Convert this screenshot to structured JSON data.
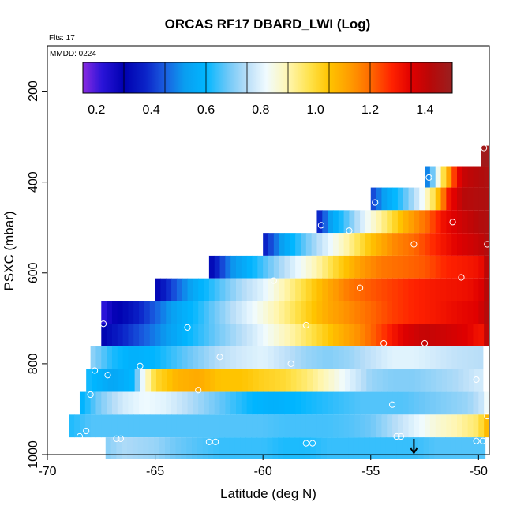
{
  "chart_data": {
    "type": "heatmap",
    "title": "ORCAS RF17 DBARD_LWI (Log)",
    "flights_note": "Flts: 17",
    "date_note": "MMDD: 0224",
    "xlabel": "Latitude (deg N)",
    "ylabel": "PSXC (mbar)",
    "xlim": [
      -70,
      -49.5
    ],
    "ylim": [
      1000,
      100
    ],
    "x_ticks": [
      -70,
      -65,
      -60,
      -55,
      -50
    ],
    "y_ticks": [
      200,
      400,
      600,
      800,
      1000
    ],
    "colorbar": {
      "range": [
        0.15,
        1.5
      ],
      "ticks": [
        0.2,
        0.4,
        0.6,
        0.8,
        1.0,
        1.2,
        1.4
      ],
      "tick_labels": [
        "0.2",
        "0.4",
        "0.6",
        "0.8",
        "1.0",
        "1.2",
        "1.4"
      ],
      "dividers": [
        0.3,
        0.45,
        0.6,
        0.75,
        0.9,
        1.05,
        1.2,
        1.35
      ]
    },
    "bands": [
      {
        "p_top": 320,
        "p_bot": 365,
        "lat_start": -49.9,
        "lat_end": -49.55,
        "stops": [
          [
            -49.9,
            1.48
          ],
          [
            -49.55,
            1.48
          ]
        ]
      },
      {
        "p_top": 365,
        "p_bot": 412,
        "lat_start": -52.5,
        "lat_end": -49.55,
        "stops": [
          [
            -52.5,
            0.4
          ],
          [
            -52.1,
            0.7
          ],
          [
            -51.7,
            0.95
          ],
          [
            -51.4,
            1.1
          ],
          [
            -51.0,
            1.32
          ],
          [
            -50.6,
            1.4
          ],
          [
            -49.55,
            1.45
          ]
        ]
      },
      {
        "p_top": 412,
        "p_bot": 462,
        "lat_start": -55.0,
        "lat_end": -49.55,
        "stops": [
          [
            -55.0,
            0.4
          ],
          [
            -54.3,
            0.55
          ],
          [
            -53.5,
            0.65
          ],
          [
            -52.7,
            0.8
          ],
          [
            -52.0,
            1.0
          ],
          [
            -51.4,
            1.3
          ],
          [
            -50.7,
            1.42
          ],
          [
            -49.55,
            1.45
          ]
        ]
      },
      {
        "p_top": 462,
        "p_bot": 512,
        "lat_start": -57.5,
        "lat_end": -49.55,
        "stops": [
          [
            -57.5,
            0.35
          ],
          [
            -56.8,
            0.55
          ],
          [
            -56.0,
            0.68
          ],
          [
            -55.2,
            0.82
          ],
          [
            -54.3,
            0.95
          ],
          [
            -53.3,
            1.1
          ],
          [
            -52.4,
            1.2
          ],
          [
            -51.6,
            1.32
          ],
          [
            -50.8,
            1.38
          ],
          [
            -49.55,
            1.45
          ]
        ]
      },
      {
        "p_top": 512,
        "p_bot": 562,
        "lat_start": -60.0,
        "lat_end": -49.55,
        "stops": [
          [
            -60.0,
            0.35
          ],
          [
            -59.0,
            0.55
          ],
          [
            -58.0,
            0.68
          ],
          [
            -57.0,
            0.8
          ],
          [
            -56.0,
            0.92
          ],
          [
            -55.0,
            1.05
          ],
          [
            -54.0,
            1.15
          ],
          [
            -53.0,
            1.2
          ],
          [
            -52.0,
            1.28
          ],
          [
            -51.0,
            1.35
          ],
          [
            -49.9,
            1.4
          ],
          [
            -49.55,
            1.45
          ]
        ]
      },
      {
        "p_top": 562,
        "p_bot": 612,
        "lat_start": -62.5,
        "lat_end": -49.55,
        "stops": [
          [
            -62.5,
            0.3
          ],
          [
            -61.5,
            0.5
          ],
          [
            -60.5,
            0.6
          ],
          [
            -59.5,
            0.7
          ],
          [
            -58.5,
            0.8
          ],
          [
            -57.5,
            0.9
          ],
          [
            -56.5,
            1.02
          ],
          [
            -55.5,
            1.12
          ],
          [
            -54.5,
            1.18
          ],
          [
            -53.5,
            1.2
          ],
          [
            -52.5,
            1.22
          ],
          [
            -51.5,
            1.28
          ],
          [
            -50.5,
            1.3
          ],
          [
            -49.9,
            1.32
          ],
          [
            -49.55,
            1.45
          ]
        ]
      },
      {
        "p_top": 612,
        "p_bot": 662,
        "lat_start": -65.0,
        "lat_end": -49.55,
        "stops": [
          [
            -65.0,
            0.3
          ],
          [
            -64.0,
            0.45
          ],
          [
            -63.0,
            0.58
          ],
          [
            -62.0,
            0.66
          ],
          [
            -61.0,
            0.74
          ],
          [
            -60.0,
            0.8
          ],
          [
            -59.0,
            0.9
          ],
          [
            -58.0,
            1.0
          ],
          [
            -57.0,
            1.1
          ],
          [
            -56.0,
            1.18
          ],
          [
            -55.0,
            1.22
          ],
          [
            -54.0,
            1.25
          ],
          [
            -53.0,
            1.28
          ],
          [
            -52.0,
            1.3
          ],
          [
            -50.5,
            1.32
          ],
          [
            -49.9,
            1.35
          ],
          [
            -49.55,
            1.45
          ]
        ]
      },
      {
        "p_top": 662,
        "p_bot": 712,
        "lat_start": -67.5,
        "lat_end": -49.55,
        "stops": [
          [
            -67.5,
            0.2
          ],
          [
            -67.0,
            0.28
          ],
          [
            -66.0,
            0.35
          ],
          [
            -65.0,
            0.45
          ],
          [
            -64.0,
            0.55
          ],
          [
            -63.0,
            0.62
          ],
          [
            -62.0,
            0.7
          ],
          [
            -61.0,
            0.78
          ],
          [
            -60.0,
            0.85
          ],
          [
            -59.0,
            0.93
          ],
          [
            -58.0,
            1.02
          ],
          [
            -57.0,
            1.1
          ],
          [
            -56.0,
            1.15
          ],
          [
            -55.0,
            1.2
          ],
          [
            -54.0,
            1.25
          ],
          [
            -53.0,
            1.28
          ],
          [
            -52.0,
            1.3
          ],
          [
            -51.0,
            1.33
          ],
          [
            -50.0,
            1.35
          ],
          [
            -49.55,
            1.45
          ]
        ]
      },
      {
        "p_top": 712,
        "p_bot": 762,
        "lat_start": -67.5,
        "lat_end": -49.55,
        "stops": [
          [
            -67.5,
            0.3
          ],
          [
            -66.5,
            0.38
          ],
          [
            -65.5,
            0.45
          ],
          [
            -64.5,
            0.52
          ],
          [
            -63.5,
            0.6
          ],
          [
            -62.5,
            0.66
          ],
          [
            -61.5,
            0.72
          ],
          [
            -60.5,
            0.78
          ],
          [
            -59.5,
            0.85
          ],
          [
            -58.5,
            0.92
          ],
          [
            -57.5,
            1.0
          ],
          [
            -56.5,
            1.08
          ],
          [
            -55.5,
            1.15
          ],
          [
            -54.5,
            1.25
          ],
          [
            -53.5,
            1.35
          ],
          [
            -52.5,
            1.4
          ],
          [
            -51.5,
            1.38
          ],
          [
            -50.5,
            1.35
          ],
          [
            -49.9,
            1.3
          ],
          [
            -49.55,
            1.45
          ]
        ]
      },
      {
        "p_top": 762,
        "p_bot": 812,
        "lat_start": -68.0,
        "lat_end": -49.8,
        "stops": [
          [
            -68.0,
            0.72
          ],
          [
            -67.0,
            0.62
          ],
          [
            -66.0,
            0.58
          ],
          [
            -65.0,
            0.6
          ],
          [
            -64.0,
            0.65
          ],
          [
            -63.0,
            0.7
          ],
          [
            -62.0,
            0.75
          ],
          [
            -61.0,
            0.78
          ],
          [
            -60.0,
            0.8
          ],
          [
            -59.0,
            0.76
          ],
          [
            -58.0,
            0.72
          ],
          [
            -57.0,
            0.7
          ],
          [
            -56.0,
            0.72
          ],
          [
            -55.0,
            0.76
          ],
          [
            -54.0,
            0.8
          ],
          [
            -53.0,
            0.8
          ],
          [
            -52.0,
            0.78
          ],
          [
            -51.0,
            0.76
          ],
          [
            -50.0,
            0.75
          ],
          [
            -49.8,
            0.75
          ]
        ]
      },
      {
        "p_top": 812,
        "p_bot": 862,
        "lat_start": -68.2,
        "lat_end": -49.8,
        "stops": [
          [
            -68.2,
            0.62
          ],
          [
            -67.0,
            0.55
          ],
          [
            -66.0,
            0.6
          ],
          [
            -65.5,
            0.85
          ],
          [
            -65.0,
            1.0
          ],
          [
            -64.0,
            1.08
          ],
          [
            -63.0,
            1.1
          ],
          [
            -62.0,
            1.05
          ],
          [
            -61.0,
            1.05
          ],
          [
            -60.0,
            1.02
          ],
          [
            -59.0,
            1.0
          ],
          [
            -58.0,
            0.95
          ],
          [
            -57.0,
            0.88
          ],
          [
            -56.0,
            0.8
          ],
          [
            -55.0,
            0.72
          ],
          [
            -54.0,
            0.7
          ],
          [
            -53.0,
            0.7
          ],
          [
            -52.0,
            0.72
          ],
          [
            -51.0,
            0.74
          ],
          [
            -50.0,
            0.78
          ],
          [
            -49.8,
            0.78
          ]
        ]
      },
      {
        "p_top": 862,
        "p_bot": 912,
        "lat_start": -68.5,
        "lat_end": -49.55,
        "stops": [
          [
            -68.5,
            0.58
          ],
          [
            -67.5,
            0.7
          ],
          [
            -66.5,
            0.78
          ],
          [
            -65.5,
            0.82
          ],
          [
            -64.5,
            0.8
          ],
          [
            -63.5,
            0.75
          ],
          [
            -62.5,
            0.7
          ],
          [
            -61.5,
            0.65
          ],
          [
            -60.5,
            0.6
          ],
          [
            -59.5,
            0.58
          ],
          [
            -58.5,
            0.6
          ],
          [
            -57.5,
            0.62
          ],
          [
            -56.5,
            0.64
          ],
          [
            -55.5,
            0.66
          ],
          [
            -54.5,
            0.66
          ],
          [
            -53.5,
            0.66
          ],
          [
            -52.5,
            0.68
          ],
          [
            -51.5,
            0.7
          ],
          [
            -50.5,
            0.72
          ],
          [
            -49.9,
            0.76
          ],
          [
            -49.55,
            0.85
          ]
        ]
      },
      {
        "p_top": 912,
        "p_bot": 962,
        "lat_start": -69.0,
        "lat_end": -49.55,
        "stops": [
          [
            -69.0,
            0.62
          ],
          [
            -68.0,
            0.66
          ],
          [
            -67.0,
            0.66
          ],
          [
            -66.0,
            0.66
          ],
          [
            -65.0,
            0.66
          ],
          [
            -64.0,
            0.66
          ],
          [
            -63.0,
            0.66
          ],
          [
            -62.0,
            0.66
          ],
          [
            -61.0,
            0.66
          ],
          [
            -60.0,
            0.66
          ],
          [
            -59.0,
            0.65
          ],
          [
            -58.0,
            0.65
          ],
          [
            -57.0,
            0.65
          ],
          [
            -56.0,
            0.66
          ],
          [
            -55.0,
            0.68
          ],
          [
            -54.0,
            0.74
          ],
          [
            -53.0,
            0.8
          ],
          [
            -52.0,
            0.86
          ],
          [
            -51.0,
            0.9
          ],
          [
            -50.0,
            0.96
          ],
          [
            -49.55,
            1.1
          ]
        ]
      },
      {
        "p_top": 962,
        "p_bot": 1010,
        "lat_start": -67.3,
        "lat_end": -49.7,
        "stops": [
          [
            -67.3,
            0.7
          ],
          [
            -66.5,
            0.74
          ],
          [
            -65.0,
            0.72
          ],
          [
            -64.0,
            0.68
          ],
          [
            -63.0,
            0.66
          ],
          [
            -62.0,
            0.64
          ],
          [
            -61.0,
            0.64
          ],
          [
            -60.0,
            0.64
          ],
          [
            -59.0,
            0.62
          ],
          [
            -58.0,
            0.62
          ],
          [
            -57.0,
            0.64
          ],
          [
            -56.0,
            0.64
          ],
          [
            -55.0,
            0.64
          ],
          [
            -54.0,
            0.64
          ],
          [
            -53.0,
            0.64
          ],
          [
            -52.0,
            0.66
          ],
          [
            -51.0,
            0.66
          ],
          [
            -50.0,
            0.66
          ],
          [
            -49.7,
            0.66
          ]
        ]
      }
    ],
    "points": [
      {
        "lat": -49.75,
        "p": 325
      },
      {
        "lat": -52.3,
        "p": 390
      },
      {
        "lat": -54.8,
        "p": 445
      },
      {
        "lat": -51.2,
        "p": 488
      },
      {
        "lat": -57.3,
        "p": 495
      },
      {
        "lat": -56.0,
        "p": 507
      },
      {
        "lat": -53.0,
        "p": 537
      },
      {
        "lat": -49.6,
        "p": 537
      },
      {
        "lat": -59.5,
        "p": 617
      },
      {
        "lat": -55.5,
        "p": 633
      },
      {
        "lat": -50.8,
        "p": 610
      },
      {
        "lat": -67.4,
        "p": 712
      },
      {
        "lat": -63.5,
        "p": 720
      },
      {
        "lat": -58.0,
        "p": 715
      },
      {
        "lat": -54.4,
        "p": 755
      },
      {
        "lat": -52.5,
        "p": 755
      },
      {
        "lat": -62.0,
        "p": 785
      },
      {
        "lat": -58.7,
        "p": 800
      },
      {
        "lat": -67.8,
        "p": 815
      },
      {
        "lat": -67.2,
        "p": 825
      },
      {
        "lat": -65.7,
        "p": 805
      },
      {
        "lat": -50.1,
        "p": 835
      },
      {
        "lat": -68.0,
        "p": 868
      },
      {
        "lat": -63.0,
        "p": 858
      },
      {
        "lat": -54.0,
        "p": 890
      },
      {
        "lat": -49.6,
        "p": 915
      },
      {
        "lat": -68.2,
        "p": 948
      },
      {
        "lat": -68.5,
        "p": 960
      },
      {
        "lat": -66.8,
        "p": 965
      },
      {
        "lat": -66.6,
        "p": 965
      },
      {
        "lat": -62.5,
        "p": 972
      },
      {
        "lat": -62.2,
        "p": 972
      },
      {
        "lat": -58.0,
        "p": 975
      },
      {
        "lat": -57.7,
        "p": 975
      },
      {
        "lat": -53.8,
        "p": 960
      },
      {
        "lat": -53.6,
        "p": 960
      },
      {
        "lat": -50.1,
        "p": 970
      },
      {
        "lat": -49.8,
        "p": 970
      }
    ],
    "marker_arrow": {
      "lat": -53.0
    }
  }
}
